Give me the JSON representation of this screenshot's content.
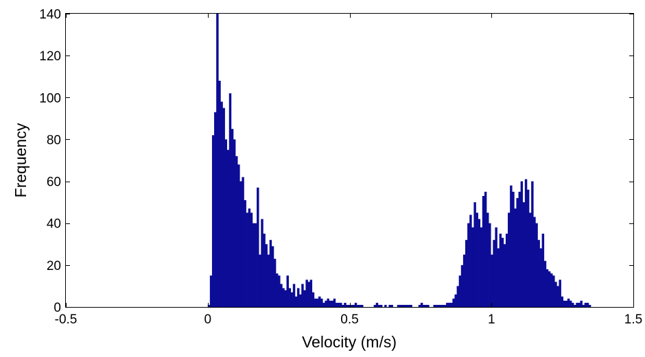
{
  "chart_data": {
    "type": "bar",
    "title": "",
    "xlabel": "Velocity (m/s)",
    "ylabel": "Frequency",
    "xlim": [
      -0.5,
      1.5
    ],
    "ylim": [
      0,
      140
    ],
    "xticks": [
      -0.5,
      0,
      0.5,
      1,
      1.5
    ],
    "xtick_labels": [
      "-0.5",
      "0",
      "0.5",
      "1",
      "1.5"
    ],
    "yticks": [
      0,
      20,
      40,
      60,
      80,
      100,
      120,
      140
    ],
    "ytick_labels": [
      "0",
      "20",
      "40",
      "60",
      "80",
      "100",
      "120",
      "140"
    ],
    "grid": false,
    "bar_color": "#0c0c96",
    "bin_start": 0.0,
    "bin_width": 0.0075,
    "values": [
      1,
      15,
      82,
      93,
      140,
      108,
      98,
      95,
      80,
      75,
      102,
      85,
      80,
      72,
      68,
      60,
      62,
      51,
      45,
      47,
      45,
      40,
      40,
      57,
      25,
      42,
      35,
      30,
      25,
      32,
      29,
      23,
      16,
      15,
      11,
      9,
      8,
      15,
      9,
      7,
      11,
      5,
      9,
      6,
      11,
      8,
      13,
      12,
      13,
      7,
      4,
      4,
      5,
      4,
      2,
      3,
      4,
      3,
      3,
      4,
      2,
      2,
      2,
      1,
      2,
      1,
      1,
      1,
      1,
      2,
      1,
      1,
      1,
      0,
      0,
      0,
      0,
      0,
      1,
      2,
      1,
      1,
      0,
      1,
      0,
      1,
      1,
      0,
      0,
      1,
      1,
      1,
      1,
      1,
      1,
      1,
      0,
      0,
      0,
      1,
      2,
      1,
      1,
      1,
      0,
      0,
      1,
      1,
      1,
      1,
      1,
      1,
      2,
      2,
      2,
      4,
      6,
      10,
      15,
      20,
      25,
      32,
      40,
      44,
      38,
      50,
      45,
      42,
      38,
      53,
      55,
      45,
      40,
      25,
      32,
      38,
      28,
      35,
      33,
      30,
      35,
      45,
      58,
      55,
      47,
      52,
      55,
      60,
      50,
      61,
      56,
      45,
      60,
      43,
      40,
      32,
      28,
      35,
      22,
      18,
      17,
      16,
      15,
      12,
      10,
      13,
      5,
      3,
      3,
      4,
      3,
      2,
      1,
      2,
      2,
      3,
      1,
      2,
      2,
      1
    ]
  }
}
